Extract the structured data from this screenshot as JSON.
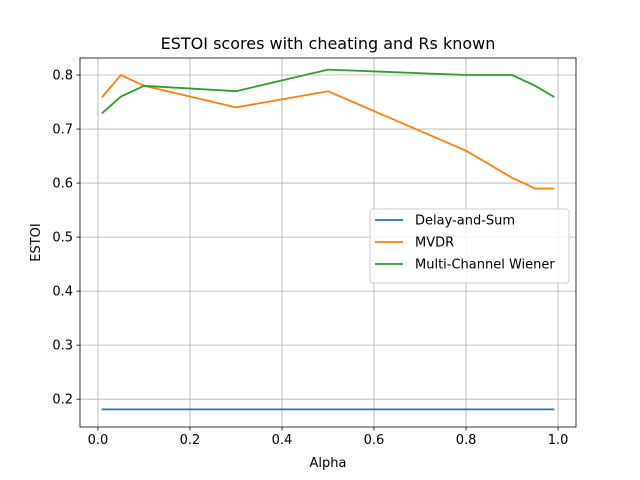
{
  "chart_data": {
    "type": "line",
    "title": "ESTOI scores with cheating and Rs known",
    "xlabel": "Alpha",
    "ylabel": "ESTOI",
    "xlim": [
      -0.039,
      1.039
    ],
    "ylim": [
      0.1485,
      0.8315
    ],
    "xticks": [
      0.0,
      0.2,
      0.4,
      0.6,
      0.8,
      1.0
    ],
    "xtick_labels": [
      "0.0",
      "0.2",
      "0.4",
      "0.6",
      "0.8",
      "1.0"
    ],
    "yticks": [
      0.2,
      0.3,
      0.4,
      0.5,
      0.6,
      0.7,
      0.8
    ],
    "ytick_labels": [
      "0.2",
      "0.3",
      "0.4",
      "0.5",
      "0.6",
      "0.7",
      "0.8"
    ],
    "grid": true,
    "legend_position": "center-right",
    "series": [
      {
        "name": "Delay-and-Sum",
        "color": "#1f77b4",
        "x": [
          0.01,
          0.05,
          0.1,
          0.3,
          0.5,
          0.8,
          0.9,
          0.95,
          0.99
        ],
        "y": [
          0.181,
          0.181,
          0.181,
          0.181,
          0.181,
          0.181,
          0.181,
          0.181,
          0.181
        ]
      },
      {
        "name": "MVDR",
        "color": "#ff7f0e",
        "x": [
          0.01,
          0.05,
          0.1,
          0.3,
          0.5,
          0.8,
          0.9,
          0.95,
          0.99
        ],
        "y": [
          0.76,
          0.8,
          0.78,
          0.74,
          0.77,
          0.66,
          0.61,
          0.59,
          0.59
        ]
      },
      {
        "name": "Multi-Channel Wiener",
        "color": "#2ca02c",
        "x": [
          0.01,
          0.05,
          0.1,
          0.3,
          0.5,
          0.8,
          0.9,
          0.95,
          0.99
        ],
        "y": [
          0.73,
          0.76,
          0.78,
          0.77,
          0.81,
          0.8,
          0.8,
          0.78,
          0.76
        ]
      }
    ]
  }
}
